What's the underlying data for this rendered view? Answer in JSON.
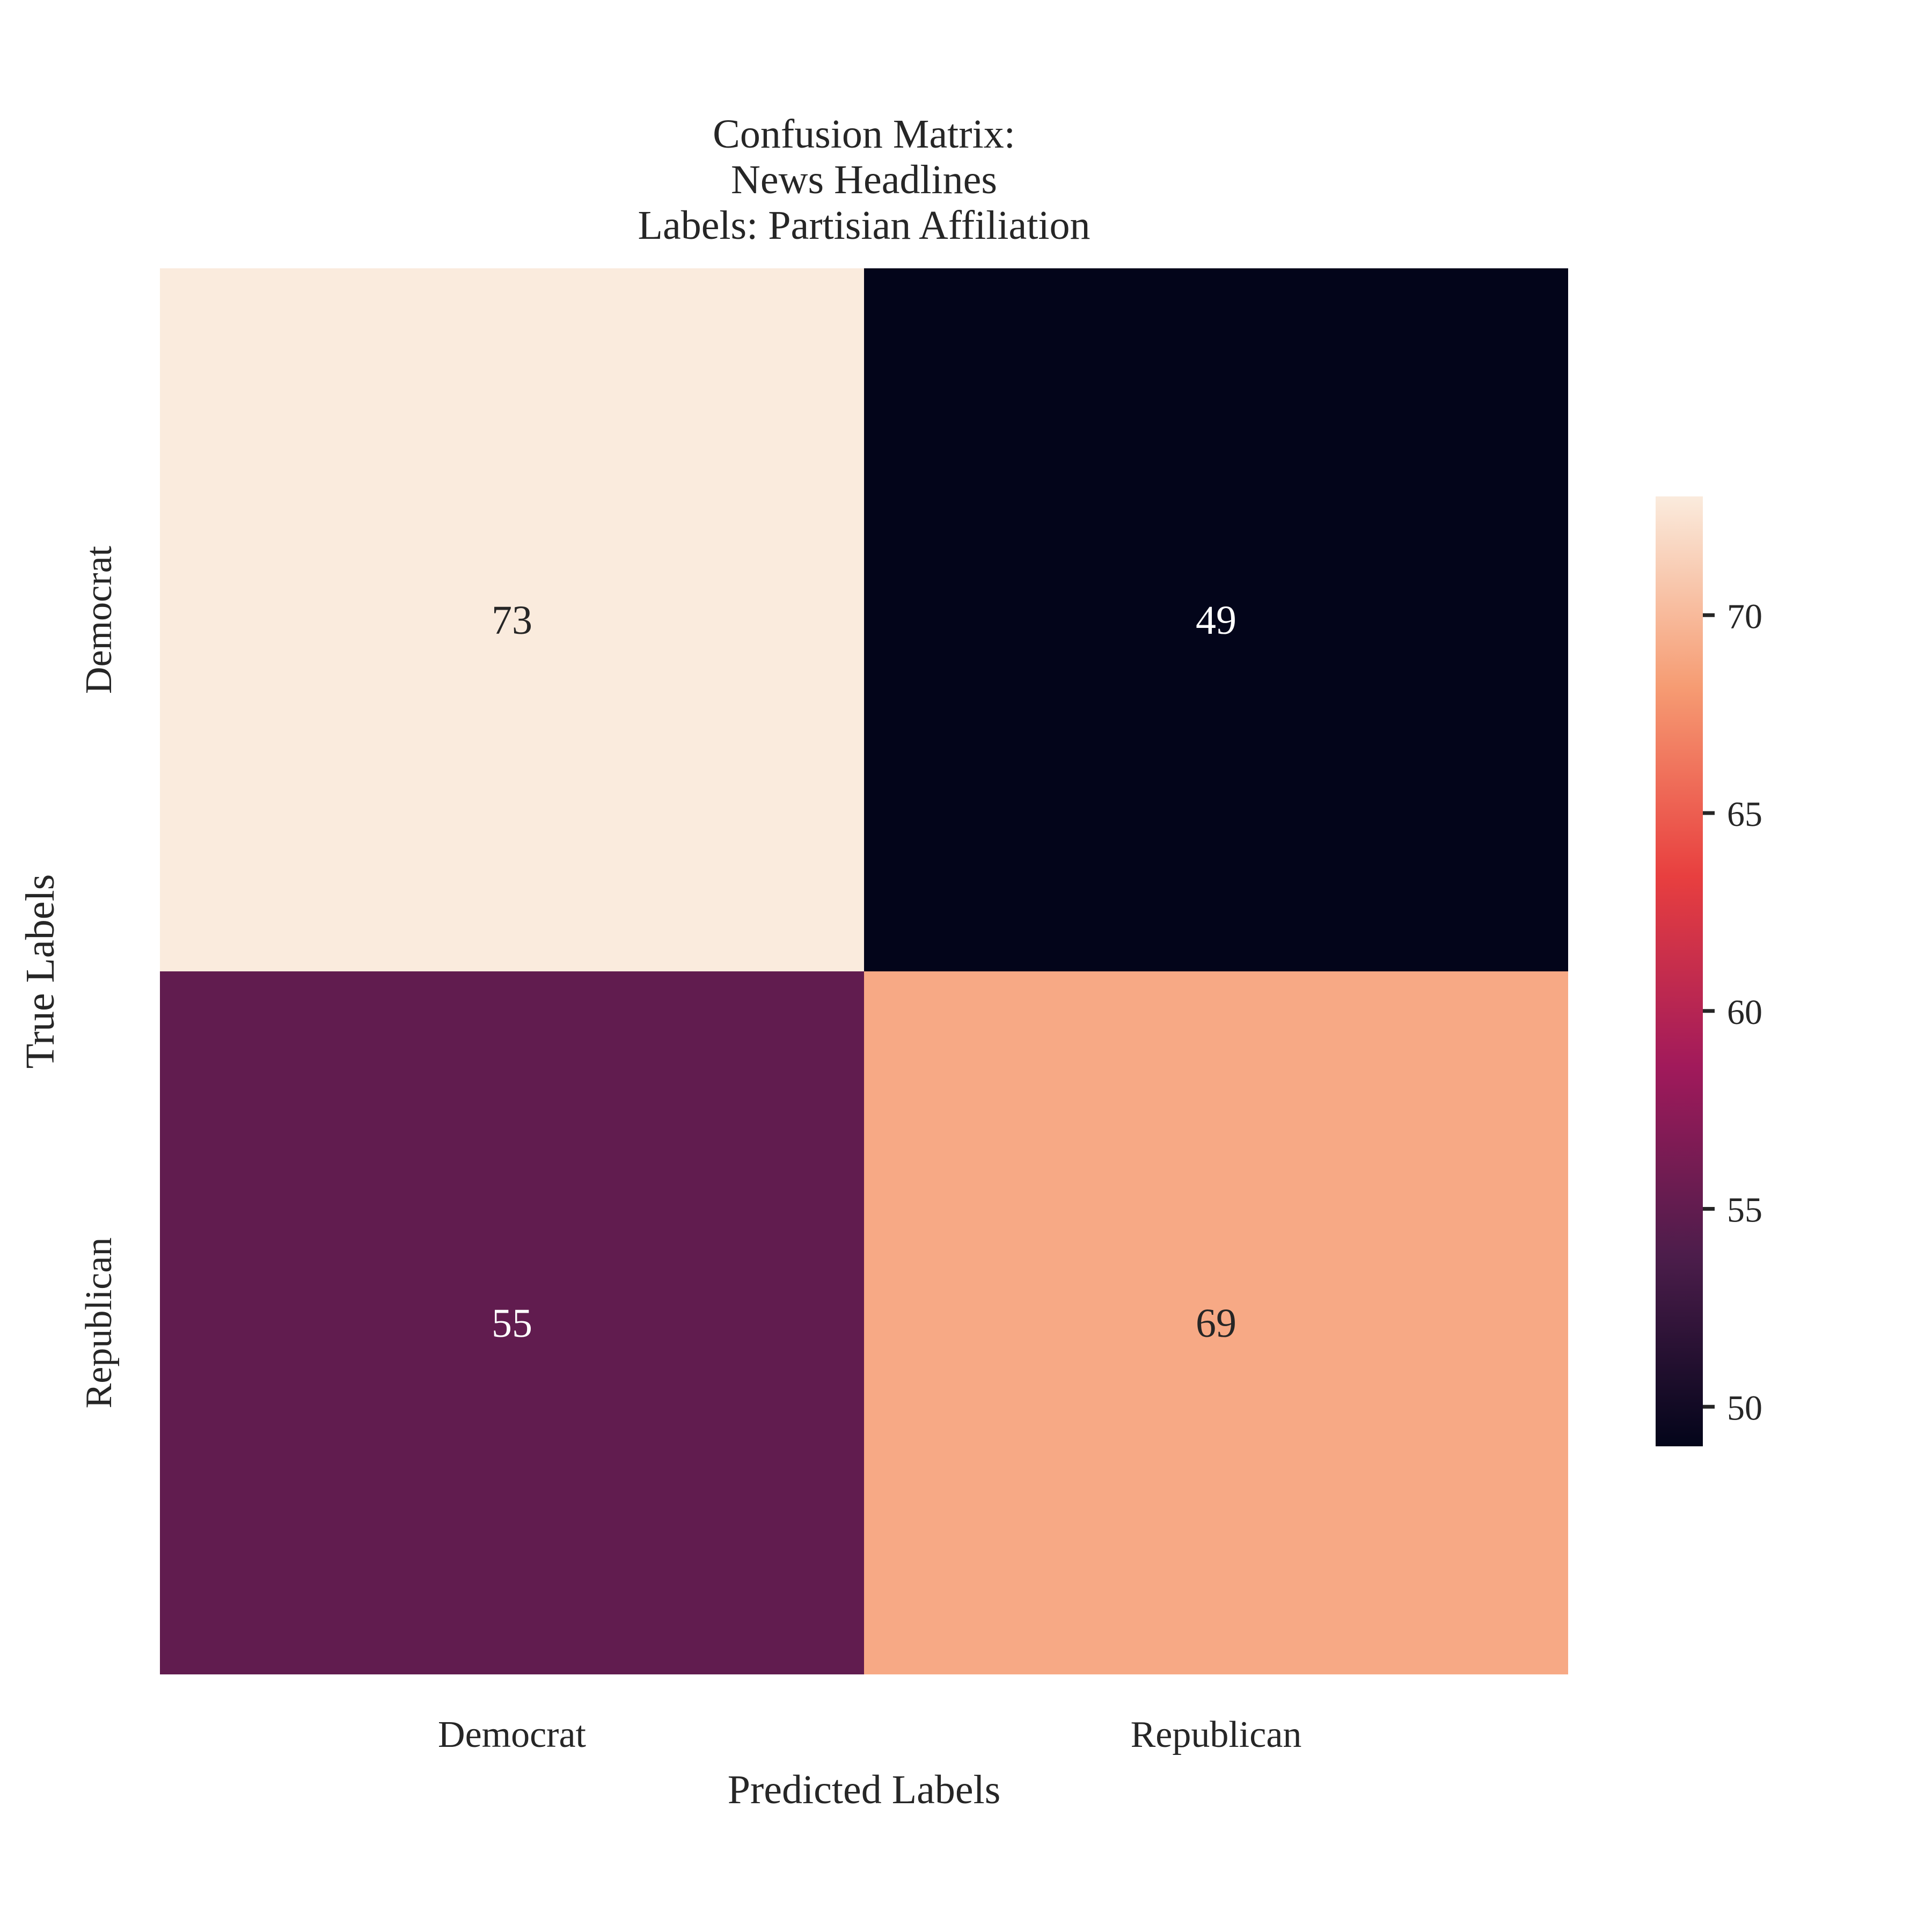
{
  "chart_data": {
    "type": "heatmap",
    "title_lines": [
      "Confusion Matrix:",
      "News Headlines",
      "Labels: Partisian Affiliation"
    ],
    "xlabel": "Predicted Labels",
    "ylabel": "True Labels",
    "x_categories": [
      "Democrat",
      "Republican"
    ],
    "y_categories": [
      "Democrat",
      "Republican"
    ],
    "values": [
      [
        73,
        49
      ],
      [
        55,
        69
      ]
    ],
    "colorbar": {
      "range": [
        49,
        73
      ],
      "ticks": [
        50,
        55,
        60,
        65,
        70
      ],
      "colormap": [
        "#03051a",
        "#4c1d4b",
        "#a11a5b",
        "#e83f3f",
        "#f69c73",
        "#faebdd"
      ]
    }
  }
}
